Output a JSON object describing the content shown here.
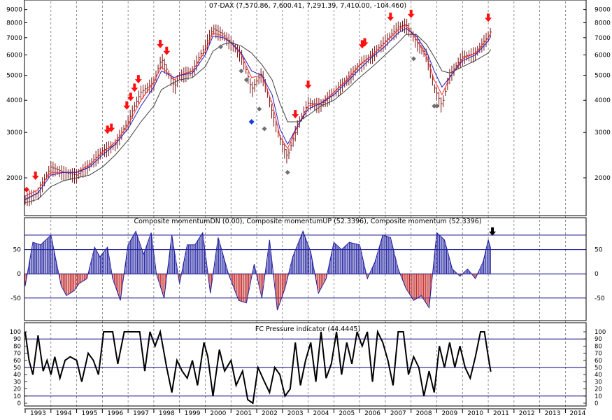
{
  "colors": {
    "background": "#ffffff",
    "frame": "#000000",
    "price_bar": "#7a1010",
    "ma_fast": "#ff3030",
    "ma_mid": "#2020c0",
    "ma_slow": "#404040",
    "sell_arrow": "#ff1010",
    "gray_marker": "#707070",
    "blue_marker": "#1040e0",
    "momentum_up": "#2020a0",
    "momentum_down": "#c02020",
    "hline": "#000080",
    "vgrid": "#606060"
  },
  "years": [
    "1993",
    "1994",
    "1995",
    "1996",
    "1997",
    "1998",
    "1999",
    "2000",
    "2001",
    "2002",
    "2003",
    "2004",
    "2005",
    "2006",
    "2007",
    "2008",
    "2009",
    "2010",
    "2011",
    "2012",
    "2013",
    "2014"
  ],
  "chart_data": [
    {
      "type": "line",
      "title": "07-DAX (7,570.86, 7,600.41, 7,291.39, 7,410.00, -104.460)",
      "scale": "log",
      "ylim": [
        1500,
        9500
      ],
      "y_ticks": [
        2000,
        3000,
        4000,
        5000,
        6000,
        7000,
        8000,
        9000
      ],
      "x": [
        1993.0,
        1993.5,
        1994.0,
        1994.5,
        1995.0,
        1995.5,
        1996.0,
        1996.5,
        1997.0,
        1997.5,
        1998.0,
        1998.3,
        1998.8,
        1999.0,
        1999.5,
        2000.0,
        2000.3,
        2000.7,
        2001.0,
        2001.4,
        2001.8,
        2002.2,
        2002.6,
        2002.9,
        2003.2,
        2003.6,
        2004.0,
        2004.5,
        2005.0,
        2005.5,
        2006.0,
        2006.5,
        2007.0,
        2007.5,
        2007.8,
        2008.2,
        2008.6,
        2008.9,
        2009.2,
        2009.5,
        2010.0,
        2010.5,
        2011.0,
        2011.1
      ],
      "close": [
        1650,
        1750,
        2200,
        2100,
        2050,
        2250,
        2550,
        2700,
        3300,
        4300,
        4700,
        5800,
        4500,
        5000,
        5200,
        6500,
        7600,
        7200,
        6700,
        6000,
        4400,
        5100,
        3600,
        2850,
        2400,
        3200,
        3900,
        3850,
        4300,
        4800,
        5500,
        6000,
        6800,
        7700,
        7900,
        6800,
        6000,
        4500,
        3800,
        5000,
        5900,
        6100,
        7100,
        7410
      ],
      "series": [
        {
          "name": "",
          "values": [
            1700,
            1800,
            2100,
            2100,
            2100,
            2250,
            2500,
            2750,
            3200,
            4000,
            4700,
            5400,
            4800,
            5000,
            5200,
            6200,
            7300,
            7100,
            6700,
            6000,
            4900,
            5000,
            3900,
            2900,
            2600,
            3200,
            3800,
            3900,
            4300,
            4800,
            5500,
            6000,
            6700,
            7500,
            7800,
            6900,
            5900,
            4800,
            4200,
            4900,
            5800,
            6100,
            7000,
            7300
          ]
        },
        {
          "name": "",
          "values": [
            1650,
            1750,
            2050,
            2100,
            2100,
            2200,
            2450,
            2700,
            3100,
            3800,
            4500,
            5200,
            4900,
            5000,
            5100,
            6000,
            7100,
            7000,
            6700,
            6100,
            5200,
            5000,
            4200,
            3100,
            2700,
            3200,
            3700,
            3900,
            4200,
            4700,
            5300,
            5900,
            6500,
            7300,
            7600,
            7100,
            6200,
            5200,
            4500,
            4900,
            5700,
            6000,
            6800,
            7100
          ]
        },
        {
          "name": "",
          "values": [
            1600,
            1650,
            1850,
            1950,
            2000,
            2050,
            2200,
            2450,
            2800,
            3300,
            3800,
            4400,
            4700,
            4800,
            4900,
            5400,
            6200,
            6600,
            6700,
            6500,
            6100,
            5500,
            4800,
            3900,
            3300,
            3300,
            3500,
            3800,
            4000,
            4400,
            4900,
            5400,
            6000,
            6700,
            7200,
            7200,
            6600,
            5900,
            5200,
            5100,
            5400,
            5700,
            6100,
            6300
          ]
        }
      ],
      "sell_arrows_x": [
        1993.4,
        1996.2,
        1996.35,
        1996.95,
        1997.1,
        1997.25,
        1997.4,
        1998.25,
        1998.5,
        2003.5,
        2004.0,
        2006.1,
        2006.2,
        2007.2,
        2008.0,
        2011.0
      ],
      "gray_markers": [
        [
          2000.6,
          6450
        ],
        [
          2001.4,
          5200
        ],
        [
          2001.6,
          4800
        ],
        [
          2002.1,
          3700
        ],
        [
          2002.3,
          3100
        ],
        [
          2003.2,
          2100
        ],
        [
          2008.1,
          5800
        ],
        [
          2008.9,
          3800
        ],
        [
          2009.0,
          3800
        ]
      ],
      "blue_marker": [
        2001.8,
        3300
      ],
      "red_marker_left": [
        1993.0,
        1800
      ]
    },
    {
      "type": "area",
      "title": "Composite momentumDN (0.00), Composite momentumUP (52.3396), Composite momentum (52.3396)",
      "ylim": [
        -85,
        100
      ],
      "y_ticks": [
        50,
        0,
        -50
      ],
      "hlines": [
        80,
        50,
        0,
        -50
      ],
      "x": [
        1993.0,
        1993.3,
        1993.6,
        1994.0,
        1994.4,
        1994.6,
        1994.9,
        1995.1,
        1995.4,
        1995.7,
        1995.9,
        1996.2,
        1996.4,
        1996.7,
        1997.0,
        1997.3,
        1997.6,
        1997.9,
        1998.1,
        1998.4,
        1998.7,
        1999.0,
        1999.3,
        1999.6,
        1999.9,
        2000.2,
        2000.5,
        2000.9,
        2001.3,
        2001.6,
        2001.9,
        2002.2,
        2002.5,
        2002.8,
        2003.1,
        2003.4,
        2003.8,
        2004.1,
        2004.4,
        2004.7,
        2005.0,
        2005.3,
        2005.6,
        2006.0,
        2006.3,
        2006.6,
        2006.9,
        2007.2,
        2007.5,
        2007.8,
        2008.1,
        2008.4,
        2008.7,
        2009.0,
        2009.3,
        2009.6,
        2009.9,
        2010.2,
        2010.5,
        2010.8,
        2011.0,
        2011.1
      ],
      "values": [
        -25,
        65,
        60,
        80,
        -25,
        -45,
        -35,
        -20,
        -10,
        55,
        35,
        55,
        -10,
        -55,
        60,
        88,
        40,
        85,
        0,
        -50,
        80,
        -20,
        60,
        60,
        85,
        -40,
        75,
        0,
        -55,
        -60,
        20,
        -50,
        70,
        -75,
        -30,
        35,
        88,
        45,
        -40,
        -10,
        65,
        50,
        65,
        60,
        -10,
        25,
        80,
        75,
        10,
        -30,
        -55,
        -45,
        -70,
        85,
        70,
        10,
        -5,
        10,
        -10,
        25,
        70,
        52
      ]
    },
    {
      "type": "line",
      "title": "FC Pressure indicator (44.4445)",
      "ylim": [
        0,
        100
      ],
      "y_ticks": [
        100,
        90,
        80,
        70,
        60,
        50,
        40,
        30,
        20,
        10,
        0
      ],
      "hlines": [
        90,
        50,
        10
      ],
      "x": [
        1993.0,
        1993.15,
        1993.3,
        1993.5,
        1993.7,
        1993.85,
        1994.0,
        1994.15,
        1994.35,
        1994.55,
        1994.75,
        1995.0,
        1995.2,
        1995.45,
        1995.65,
        1995.85,
        1996.05,
        1996.2,
        1996.4,
        1996.6,
        1996.85,
        1997.05,
        1997.25,
        1997.45,
        1997.65,
        1997.85,
        1998.05,
        1998.25,
        1998.5,
        1998.7,
        1998.9,
        1999.1,
        1999.3,
        1999.5,
        1999.7,
        1999.95,
        2000.1,
        2000.3,
        2000.55,
        2000.75,
        2001.0,
        2001.2,
        2001.45,
        2001.65,
        2001.85,
        2002.05,
        2002.3,
        2002.5,
        2002.7,
        2002.9,
        2003.1,
        2003.3,
        2003.5,
        2003.7,
        2003.9,
        2004.1,
        2004.3,
        2004.5,
        2004.7,
        2004.9,
        2005.1,
        2005.3,
        2005.5,
        2005.7,
        2005.9,
        2006.1,
        2006.3,
        2006.5,
        2006.7,
        2006.9,
        2007.1,
        2007.3,
        2007.5,
        2007.7,
        2007.9,
        2008.1,
        2008.3,
        2008.5,
        2008.7,
        2008.9,
        2009.1,
        2009.3,
        2009.5,
        2009.7,
        2009.9,
        2010.1,
        2010.3,
        2010.5,
        2010.7,
        2010.85,
        2011.0,
        2011.1
      ],
      "values": [
        100,
        60,
        40,
        95,
        45,
        60,
        40,
        65,
        35,
        60,
        65,
        60,
        30,
        70,
        60,
        40,
        100,
        100,
        100,
        55,
        100,
        100,
        100,
        100,
        45,
        100,
        80,
        100,
        50,
        15,
        60,
        45,
        35,
        60,
        25,
        85,
        65,
        10,
        75,
        45,
        60,
        25,
        45,
        5,
        0,
        50,
        30,
        15,
        50,
        40,
        10,
        20,
        85,
        25,
        60,
        85,
        30,
        100,
        35,
        55,
        100,
        40,
        85,
        55,
        100,
        80,
        100,
        30,
        100,
        85,
        60,
        25,
        100,
        100,
        40,
        65,
        50,
        10,
        45,
        15,
        80,
        50,
        85,
        50,
        80,
        50,
        35,
        65,
        100,
        100,
        65,
        44
      ]
    }
  ]
}
